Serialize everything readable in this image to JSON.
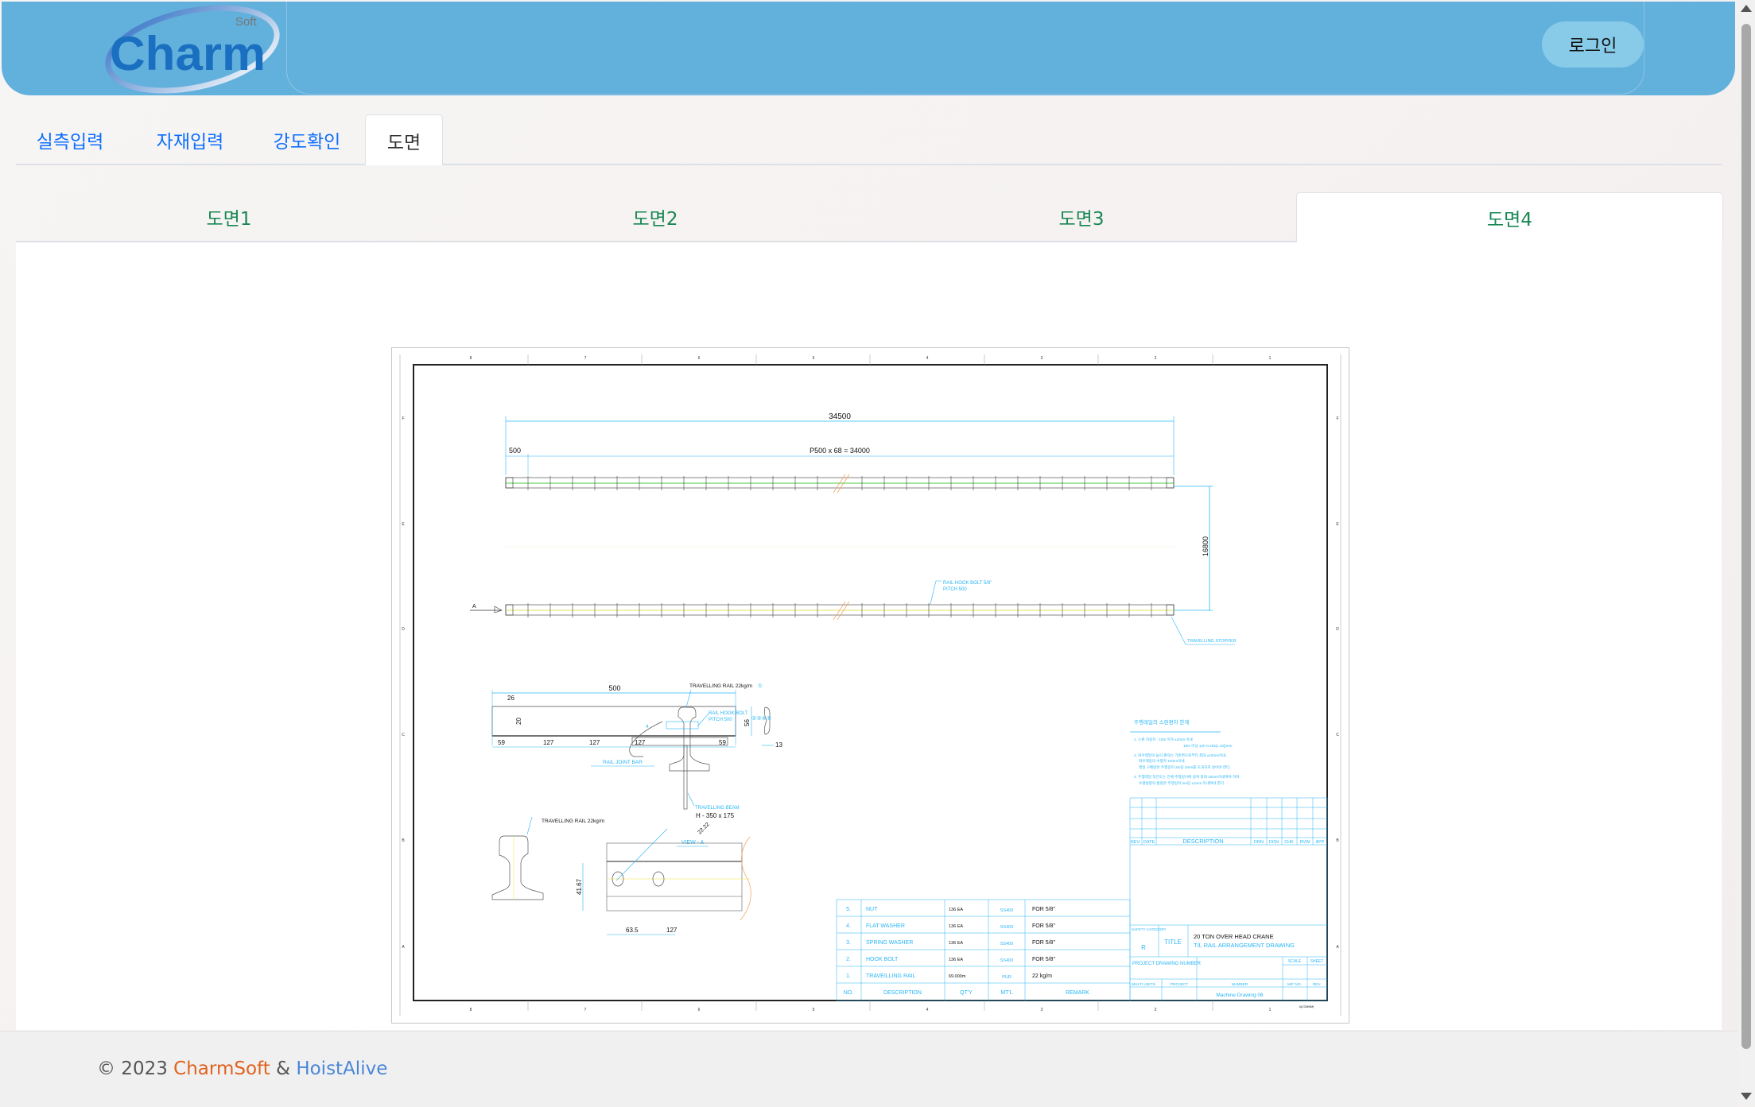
{
  "header": {
    "logo_text": "Charm",
    "logo_sub": "Soft",
    "login_label": "로그인",
    "colors": {
      "header_bg": "#62b0dc",
      "login_bg": "#87cbe8",
      "logo_blue": "#1a6fc0"
    }
  },
  "tabs": [
    {
      "label": "실측입력",
      "active": false
    },
    {
      "label": "자재입력",
      "active": false
    },
    {
      "label": "강도확인",
      "active": false
    },
    {
      "label": "도면",
      "active": true
    }
  ],
  "subtabs": [
    {
      "label": "도면1",
      "active": false
    },
    {
      "label": "도면2",
      "active": false
    },
    {
      "label": "도면3",
      "active": false
    },
    {
      "label": "도면4",
      "active": true
    }
  ],
  "drawing": {
    "columns": [
      "8",
      "7",
      "6",
      "5",
      "4",
      "3",
      "2",
      "1"
    ],
    "rows": [
      "F",
      "E",
      "D",
      "C",
      "B",
      "A"
    ],
    "dim_total": "34500",
    "dim_first": "500",
    "dim_pitch": "P500 x 68 = 34000",
    "dim_span": "16800",
    "section_mark": "A",
    "hook_bolt_label": "RAIL HOOK BOLT 5/8\"",
    "hook_bolt_pitch": "PITCH 500",
    "stopper_label": "TRAVELLING STOPPER",
    "joint_bar": {
      "length": "500",
      "hole_offset": "26",
      "hole_height": "20",
      "height": "56",
      "thickness": "13",
      "spacing": [
        "59",
        "127",
        "127",
        "127",
        "59"
      ],
      "label": "RAIL JOINT BAR"
    },
    "view_a": {
      "rail_label": "TRAVELLING RAIL 22kg/m",
      "rail_mark": "①",
      "bolt_label": "RAIL HOOK BOLT",
      "bolt_pitch": "PITCH 500",
      "bolt_marks": "②③④⑤",
      "part_mark": "4",
      "beam_label": "TRAVELLING BEAM",
      "beam_size": "H - 350 x 175",
      "title": "VIEW - A"
    },
    "rail_section": {
      "label": "TRAVELLING RAIL 22kg/m",
      "height_dim": "41.67",
      "hole_dim": "22.22",
      "offset_dim": "63.5",
      "pitch_dim": "127"
    },
    "notes": {
      "title": "주행레일의 스판편차 한계",
      "lines": [
        "1. 스판 허용치 : 10m 이하 ±3mm 이내",
        "10m 이상 ±(3+0.25x[L-10])mm",
        "2. 좌우레일의 높이 편차는 기준면으로부터 최대 ±10mm이내,",
        "좌우레일의 수평차 10mm이내,",
        "레일 구배량은 주행길이 2m당 2mm를 초과하지 않아야 한다.",
        "3. 주행레일 직진도는 전체 주행길이에 걸쳐 최대 10mm이내여야 하며,",
        "수평방향의 휨량은 주행길이 2m당 ±1mm 이내여야 한다."
      ]
    },
    "revision_headers": [
      "REV.",
      "DATE",
      "DESCRIPTION",
      "DRN",
      "DGN",
      "CHK",
      "RVW",
      "APP"
    ],
    "parts_headers": [
      "NO.",
      "DESCRIPTION",
      "QT'Y",
      "MT'L",
      "REMARK"
    ],
    "parts": [
      {
        "no": "5.",
        "desc": "NUT",
        "qty": "136 EA",
        "mtl": "SS400",
        "remark": "FOR 5/8\""
      },
      {
        "no": "4.",
        "desc": "FLAT WASHER",
        "qty": "136 EA",
        "mtl": "SS400",
        "remark": "FOR 5/8\""
      },
      {
        "no": "3.",
        "desc": "SPRING WASHER",
        "qty": "136 EA",
        "mtl": "SS400",
        "remark": "FOR 5/8\""
      },
      {
        "no": "2.",
        "desc": "HOOK BOLT",
        "qty": "136 EA",
        "mtl": "SS400",
        "remark": "FOR 5/8\""
      },
      {
        "no": "1.",
        "desc": "TRAVEILLING RAIL",
        "qty": "69.000m",
        "mtl": "PUR",
        "remark": "22 kg/m"
      }
    ],
    "title_block": {
      "safety_label": "SAFETY CATEGORY",
      "safety_value": "R",
      "title_label": "TITLE",
      "title_line1": "20 TON OVER HEAD CRANE",
      "title_line2": "T/L RAIL ARRANGEMENT DRAWING",
      "project_drawing_number": "PROJECT DRAWING NUMBER",
      "scale_label": "SCALE",
      "sheet_label": "SHEET",
      "multi_units": "MULTI UNITS",
      "project": "PROJECT",
      "number": "NUMBER",
      "mf_no": "M/F NO.",
      "rev": "REV.",
      "drawing_number": "Machine Drawing 06",
      "sheet_size": "A(COMMM)"
    }
  },
  "footer": {
    "copyright": "© 2023",
    "company1": "CharmSoft",
    "amp": "&",
    "company2": "HoistAlive",
    "colors": {
      "company1": "#e0621e",
      "company2": "#4a86d8"
    }
  }
}
